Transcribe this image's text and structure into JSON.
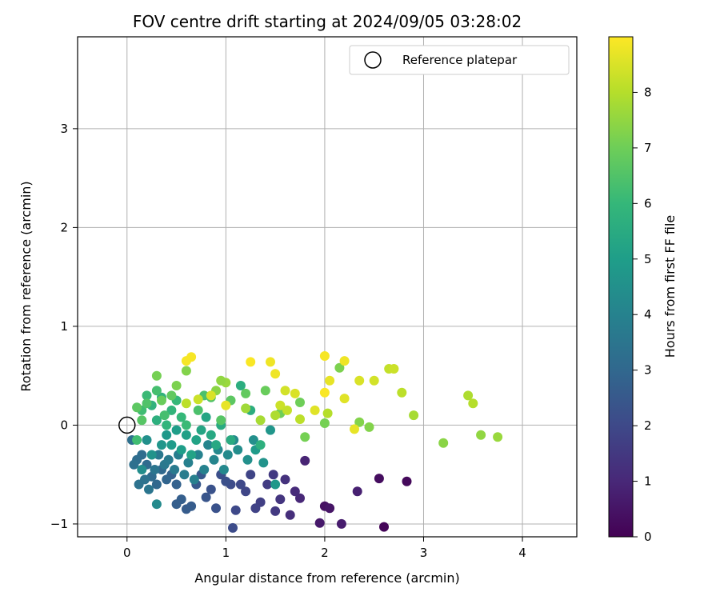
{
  "chart_data": {
    "type": "scatter",
    "title": "FOV centre drift starting at 2024/09/05 03:28:02",
    "xlabel": "Angular distance from reference (arcmin)",
    "ylabel": "Rotation from reference (arcmin)",
    "xlim": [
      -0.5,
      4.55
    ],
    "ylim": [
      -1.13,
      3.93
    ],
    "xticks": [
      0,
      1,
      2,
      3,
      4
    ],
    "yticks": [
      -1,
      0,
      1,
      2,
      3
    ],
    "grid": true,
    "legend": {
      "placement": "upper-right",
      "entries": [
        "Reference platepar"
      ]
    },
    "colorbar": {
      "label": "Hours from first FF file",
      "colormap": "viridis",
      "range": [
        0,
        9
      ],
      "ticks": [
        0,
        1,
        2,
        3,
        4,
        5,
        6,
        7,
        8
      ]
    },
    "reference_point": {
      "x": 0,
      "y": 0,
      "label": "Reference platepar"
    },
    "series": [
      {
        "color_by": "hours",
        "points": [
          [
            2.6,
            -1.03,
            0.1
          ],
          [
            2.83,
            -0.57,
            0.2
          ],
          [
            2.55,
            -0.54,
            0.3
          ],
          [
            2.0,
            -0.82,
            0.4
          ],
          [
            2.05,
            -0.84,
            0.5
          ],
          [
            1.95,
            -0.99,
            0.6
          ],
          [
            2.17,
            -1.0,
            0.7
          ],
          [
            2.33,
            -0.67,
            0.8
          ],
          [
            1.8,
            -0.36,
            0.9
          ],
          [
            1.75,
            -0.74,
            1.0
          ],
          [
            1.7,
            -0.67,
            1.1
          ],
          [
            1.65,
            -0.91,
            1.2
          ],
          [
            1.6,
            -0.55,
            1.3
          ],
          [
            1.55,
            -0.75,
            1.4
          ],
          [
            1.5,
            -0.87,
            1.5
          ],
          [
            1.48,
            -0.5,
            1.55
          ],
          [
            1.42,
            -0.6,
            1.6
          ],
          [
            1.35,
            -0.78,
            1.7
          ],
          [
            1.3,
            -0.84,
            1.8
          ],
          [
            1.25,
            -0.5,
            1.85
          ],
          [
            1.2,
            -0.67,
            1.9
          ],
          [
            1.15,
            -0.6,
            2.0
          ],
          [
            1.1,
            -0.86,
            2.0
          ],
          [
            1.05,
            -0.6,
            2.1
          ],
          [
            1.07,
            -1.04,
            2.1
          ],
          [
            1.0,
            -0.57,
            2.2
          ],
          [
            0.95,
            -0.5,
            2.2
          ],
          [
            0.9,
            -0.84,
            2.3
          ],
          [
            0.85,
            -0.65,
            2.3
          ],
          [
            0.8,
            -0.73,
            2.4
          ],
          [
            0.75,
            -0.5,
            2.5
          ],
          [
            0.7,
            -0.6,
            2.5
          ],
          [
            0.65,
            -0.82,
            2.6
          ],
          [
            0.6,
            -0.85,
            2.6
          ],
          [
            0.55,
            -0.75,
            2.7
          ],
          [
            0.5,
            -0.8,
            2.7
          ],
          [
            0.5,
            -0.6,
            2.8
          ],
          [
            0.45,
            -0.5,
            2.8
          ],
          [
            0.4,
            -0.55,
            2.9
          ],
          [
            0.35,
            -0.45,
            3.0
          ],
          [
            0.3,
            -0.6,
            3.0
          ],
          [
            0.25,
            -0.52,
            3.1
          ],
          [
            0.2,
            -0.4,
            3.1
          ],
          [
            0.15,
            -0.3,
            3.2
          ],
          [
            0.1,
            -0.35,
            3.2
          ],
          [
            0.05,
            -0.15,
            3.3
          ],
          [
            0.07,
            -0.4,
            3.3
          ],
          [
            0.12,
            -0.6,
            3.4
          ],
          [
            0.18,
            -0.55,
            3.4
          ],
          [
            0.22,
            -0.65,
            3.5
          ],
          [
            0.28,
            -0.45,
            3.5
          ],
          [
            0.32,
            -0.3,
            3.6
          ],
          [
            0.38,
            -0.4,
            3.6
          ],
          [
            0.42,
            -0.35,
            3.7
          ],
          [
            0.48,
            -0.45,
            3.7
          ],
          [
            0.52,
            -0.3,
            3.8
          ],
          [
            0.58,
            -0.5,
            3.8
          ],
          [
            0.62,
            -0.38,
            3.9
          ],
          [
            0.68,
            -0.55,
            3.9
          ],
          [
            0.72,
            -0.3,
            4.0
          ],
          [
            0.78,
            -0.45,
            4.0
          ],
          [
            0.82,
            -0.2,
            4.1
          ],
          [
            0.88,
            -0.35,
            4.1
          ],
          [
            0.92,
            -0.25,
            4.2
          ],
          [
            0.98,
            -0.45,
            4.2
          ],
          [
            1.02,
            -0.3,
            4.3
          ],
          [
            1.08,
            -0.15,
            4.3
          ],
          [
            1.12,
            -0.25,
            4.4
          ],
          [
            1.22,
            -0.35,
            4.5
          ],
          [
            1.28,
            -0.15,
            4.5
          ],
          [
            1.38,
            -0.38,
            4.6
          ],
          [
            1.45,
            -0.05,
            4.7
          ],
          [
            1.5,
            -0.6,
            4.8
          ],
          [
            1.3,
            -0.25,
            4.9
          ],
          [
            0.3,
            -0.8,
            4.3
          ],
          [
            0.2,
            -0.15,
            4.5
          ],
          [
            0.15,
            -0.45,
            4.4
          ],
          [
            0.25,
            -0.3,
            4.6
          ],
          [
            0.35,
            -0.2,
            4.7
          ],
          [
            0.4,
            -0.1,
            4.8
          ],
          [
            0.45,
            -0.2,
            4.9
          ],
          [
            0.5,
            -0.05,
            5.0
          ],
          [
            0.55,
            -0.25,
            5.0
          ],
          [
            0.6,
            -0.1,
            5.1
          ],
          [
            0.65,
            -0.3,
            5.2
          ],
          [
            0.7,
            -0.15,
            5.2
          ],
          [
            0.75,
            -0.05,
            5.3
          ],
          [
            0.8,
            0.08,
            5.3
          ],
          [
            0.85,
            -0.1,
            5.4
          ],
          [
            0.9,
            -0.2,
            5.4
          ],
          [
            0.95,
            0.0,
            5.5
          ],
          [
            1.05,
            -0.15,
            5.5
          ],
          [
            1.15,
            0.4,
            5.6
          ],
          [
            1.25,
            0.15,
            5.6
          ],
          [
            1.35,
            -0.2,
            5.7
          ],
          [
            0.3,
            0.05,
            5.7
          ],
          [
            0.25,
            0.2,
            5.8
          ],
          [
            0.35,
            0.28,
            5.8
          ],
          [
            0.4,
            0.0,
            5.9
          ],
          [
            0.45,
            0.15,
            5.9
          ],
          [
            0.5,
            0.25,
            6.0
          ],
          [
            0.55,
            0.08,
            6.0
          ],
          [
            0.6,
            0.0,
            6.1
          ],
          [
            0.2,
            0.3,
            6.1
          ],
          [
            0.15,
            0.15,
            6.2
          ],
          [
            0.1,
            -0.15,
            6.2
          ],
          [
            0.3,
            0.35,
            6.3
          ],
          [
            0.38,
            0.1,
            6.3
          ],
          [
            0.72,
            0.15,
            6.4
          ],
          [
            0.78,
            0.3,
            6.4
          ],
          [
            0.85,
            0.28,
            6.5
          ],
          [
            0.95,
            0.05,
            6.6
          ],
          [
            1.05,
            0.25,
            6.7
          ],
          [
            1.2,
            0.32,
            6.8
          ],
          [
            1.4,
            0.35,
            6.9
          ],
          [
            1.55,
            0.12,
            7.0
          ],
          [
            1.75,
            0.23,
            7.0
          ],
          [
            1.8,
            -0.12,
            7.1
          ],
          [
            2.0,
            0.02,
            7.1
          ],
          [
            2.15,
            0.58,
            7.2
          ],
          [
            2.35,
            0.03,
            7.3
          ],
          [
            2.45,
            -0.02,
            7.3
          ],
          [
            3.2,
            -0.18,
            7.4
          ],
          [
            3.58,
            -0.1,
            7.5
          ],
          [
            3.75,
            -0.12,
            7.6
          ],
          [
            2.9,
            0.1,
            7.8
          ],
          [
            3.45,
            0.3,
            7.9
          ],
          [
            3.5,
            0.22,
            8.0
          ],
          [
            2.78,
            0.33,
            8.1
          ],
          [
            2.65,
            0.57,
            8.2
          ],
          [
            2.7,
            0.57,
            8.3
          ],
          [
            2.5,
            0.45,
            8.4
          ],
          [
            2.35,
            0.45,
            8.5
          ],
          [
            2.2,
            0.27,
            8.6
          ],
          [
            2.3,
            -0.04,
            8.7
          ],
          [
            1.45,
            0.64,
            8.8
          ],
          [
            1.5,
            0.52,
            8.8
          ],
          [
            0.6,
            0.65,
            8.9
          ],
          [
            0.65,
            0.69,
            8.9
          ],
          [
            1.25,
            0.64,
            8.95
          ],
          [
            2.0,
            0.7,
            8.9
          ],
          [
            2.2,
            0.65,
            8.8
          ],
          [
            2.05,
            0.45,
            8.7
          ],
          [
            1.9,
            0.15,
            8.6
          ],
          [
            1.7,
            0.32,
            8.5
          ],
          [
            1.6,
            0.35,
            8.4
          ],
          [
            1.55,
            0.2,
            8.3
          ],
          [
            1.62,
            0.15,
            8.2
          ],
          [
            1.75,
            0.06,
            8.1
          ],
          [
            2.03,
            0.12,
            8.0
          ],
          [
            1.5,
            0.1,
            7.9
          ],
          [
            1.35,
            0.05,
            7.8
          ],
          [
            1.2,
            0.17,
            7.7
          ],
          [
            1.0,
            0.43,
            7.6
          ],
          [
            0.95,
            0.45,
            7.5
          ],
          [
            0.9,
            0.35,
            7.4
          ],
          [
            0.6,
            0.55,
            7.3
          ],
          [
            0.5,
            0.4,
            7.2
          ],
          [
            0.3,
            0.5,
            7.1
          ],
          [
            0.35,
            0.25,
            6.9
          ],
          [
            0.45,
            0.3,
            6.8
          ],
          [
            0.1,
            0.18,
            6.7
          ],
          [
            0.15,
            0.05,
            6.6
          ],
          [
            0.2,
            0.22,
            6.5
          ],
          [
            0.6,
            0.22,
            8.1
          ],
          [
            0.72,
            0.26,
            8.3
          ],
          [
            0.85,
            0.3,
            8.5
          ],
          [
            1.0,
            0.2,
            8.7
          ],
          [
            2.0,
            0.33,
            8.95
          ]
        ]
      }
    ]
  }
}
